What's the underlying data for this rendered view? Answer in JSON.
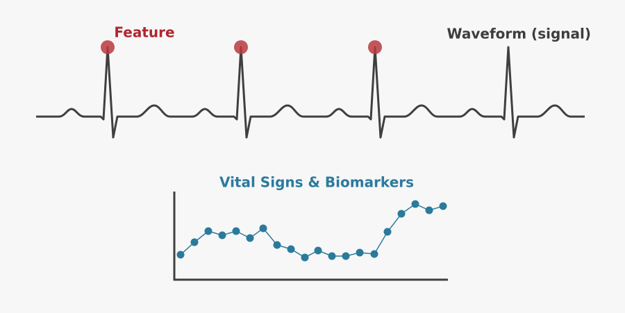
{
  "labels": {
    "feature": "Feature",
    "waveform": "Waveform (signal)",
    "chart_title": "Vital Signs & Biomarkers"
  }
}
